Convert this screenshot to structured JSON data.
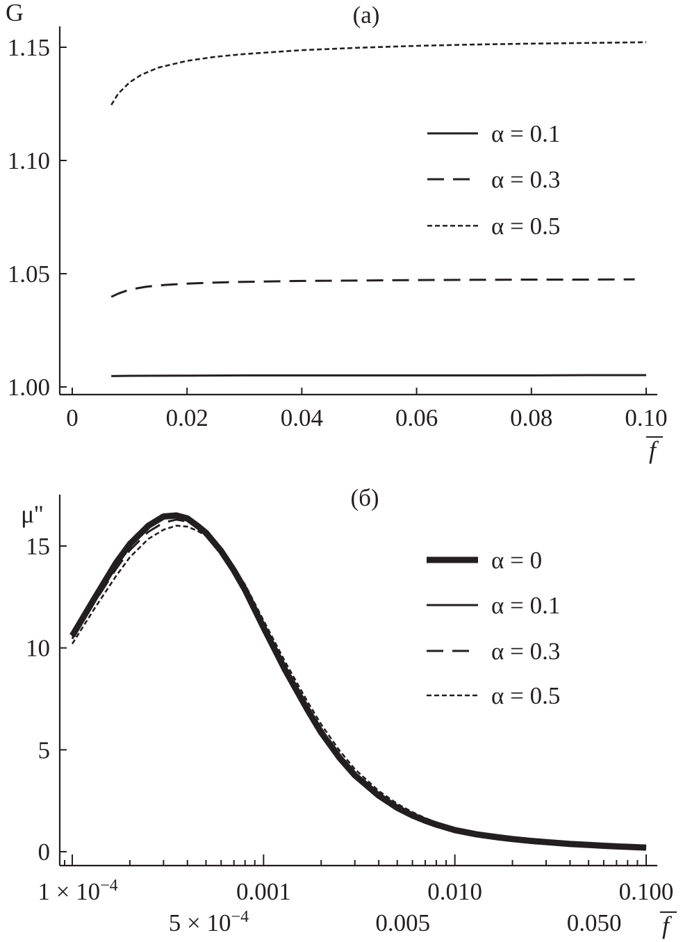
{
  "chart_data": [
    {
      "type": "line",
      "panel_label": "(a)",
      "xlabel": "f",
      "xlabel_overbar": true,
      "ylabel": "G",
      "xlim": [
        0,
        0.1
      ],
      "ylim": [
        1.0,
        1.16
      ],
      "x_ticks": [
        0,
        0.02,
        0.04,
        0.06,
        0.08,
        0.1
      ],
      "x_tick_labels": [
        "0",
        "0.02",
        "0.04",
        "0.06",
        "0.08",
        "0.10"
      ],
      "y_ticks": [
        1.0,
        1.05,
        1.1,
        1.15
      ],
      "y_tick_labels": [
        "1.00",
        "1.05",
        "1.10",
        "1.15"
      ],
      "grid": false,
      "legend_position": "top-right",
      "colors": {
        "ink": "#231f20"
      },
      "series": [
        {
          "name": "α = 0.1",
          "style": "solid",
          "x": [
            0.0068,
            0.01,
            0.02,
            0.03,
            0.04,
            0.05,
            0.06,
            0.07,
            0.08,
            0.09,
            0.1
          ],
          "y": [
            1.0048,
            1.0049,
            1.005,
            1.0051,
            1.0051,
            1.0051,
            1.0051,
            1.0051,
            1.0051,
            1.0052,
            1.0052
          ]
        },
        {
          "name": "α = 0.3",
          "style": "dashed",
          "x": [
            0.0068,
            0.008,
            0.01,
            0.013,
            0.016,
            0.02,
            0.025,
            0.03,
            0.04,
            0.05,
            0.06,
            0.07,
            0.08,
            0.09,
            0.098
          ],
          "y": [
            1.0398,
            1.0412,
            1.043,
            1.0443,
            1.045,
            1.0456,
            1.0461,
            1.0464,
            1.0468,
            1.047,
            1.0472,
            1.0473,
            1.0474,
            1.0474,
            1.0475
          ]
        },
        {
          "name": "α = 0.5",
          "style": "dotted",
          "x": [
            0.0068,
            0.008,
            0.01,
            0.012,
            0.015,
            0.02,
            0.025,
            0.03,
            0.04,
            0.05,
            0.06,
            0.07,
            0.08,
            0.09,
            0.1
          ],
          "y": [
            1.1245,
            1.1295,
            1.1345,
            1.1378,
            1.141,
            1.144,
            1.1458,
            1.147,
            1.1487,
            1.1498,
            1.1506,
            1.1512,
            1.1516,
            1.1519,
            1.1522
          ]
        }
      ]
    },
    {
      "type": "line",
      "panel_label": "(б)",
      "x_scale": "log",
      "xlabel": "f",
      "xlabel_overbar": true,
      "ylabel": "μ''",
      "xlim": [
        0.0001,
        0.1
      ],
      "ylim": [
        0,
        16.5
      ],
      "x_major_ticks": [
        0.0001,
        0.001,
        0.01,
        0.1
      ],
      "x_major_labels": [
        {
          "mant": "1 × 10",
          "exp": "−4"
        },
        {
          "mant": "0.001"
        },
        {
          "mant": "0.010"
        },
        {
          "mant": "0.100"
        }
      ],
      "x_secondary_ticks": [
        0.0005,
        0.005,
        0.05
      ],
      "x_secondary_labels": [
        {
          "mant": "5 × 10",
          "exp": "−4"
        },
        {
          "mant": "0.005"
        },
        {
          "mant": "0.050"
        }
      ],
      "y_ticks": [
        0,
        5,
        10,
        15
      ],
      "y_tick_labels": [
        "0",
        "5",
        "10",
        "15"
      ],
      "grid": false,
      "legend_position": "top-right",
      "colors": {
        "ink": "#231f20"
      },
      "series": [
        {
          "name": "α = 0",
          "style": "thick",
          "x": [
            0.0001,
            0.00013,
            0.00017,
            0.0002,
            0.00025,
            0.0003,
            0.00035,
            0.0004,
            0.00045,
            0.0005,
            0.0006,
            0.0007,
            0.0008,
            0.001,
            0.0013,
            0.0017,
            0.002,
            0.0025,
            0.003,
            0.004,
            0.005,
            0.006,
            0.007,
            0.008,
            0.01,
            0.013,
            0.017,
            0.02,
            0.025,
            0.03,
            0.04,
            0.05,
            0.06,
            0.07,
            0.08,
            0.1
          ],
          "y": [
            10.6,
            12.4,
            14.2,
            15.1,
            16.0,
            16.45,
            16.5,
            16.35,
            16.0,
            15.65,
            14.75,
            13.8,
            12.85,
            11.0,
            8.9,
            6.95,
            5.85,
            4.6,
            3.75,
            2.75,
            2.15,
            1.78,
            1.52,
            1.33,
            1.06,
            0.85,
            0.7,
            0.62,
            0.53,
            0.47,
            0.38,
            0.33,
            0.29,
            0.26,
            0.24,
            0.2
          ]
        },
        {
          "name": "α = 0.1",
          "style": "solid",
          "x": [
            0.0001,
            0.00013,
            0.00017,
            0.0002,
            0.00025,
            0.0003,
            0.00035,
            0.0004,
            0.00045,
            0.0005,
            0.0006,
            0.0007,
            0.0008,
            0.001,
            0.0013,
            0.0017,
            0.002,
            0.0025,
            0.003,
            0.004,
            0.005,
            0.006,
            0.007,
            0.008,
            0.01,
            0.013,
            0.017,
            0.02,
            0.025,
            0.03,
            0.04,
            0.05,
            0.06,
            0.07,
            0.08,
            0.1
          ],
          "y": [
            10.55,
            12.35,
            14.1,
            15.0,
            15.9,
            16.35,
            16.45,
            16.3,
            15.97,
            15.63,
            14.74,
            13.8,
            12.86,
            11.03,
            8.95,
            7.0,
            5.9,
            4.65,
            3.79,
            2.78,
            2.18,
            1.8,
            1.54,
            1.35,
            1.08,
            0.86,
            0.71,
            0.63,
            0.54,
            0.48,
            0.39,
            0.33,
            0.29,
            0.26,
            0.24,
            0.2
          ]
        },
        {
          "name": "α = 0.3",
          "style": "dashed",
          "x": [
            0.0001,
            0.00013,
            0.00017,
            0.0002,
            0.00025,
            0.0003,
            0.00035,
            0.0004,
            0.00045,
            0.0005,
            0.0006,
            0.0007,
            0.0008,
            0.001,
            0.0013,
            0.0017,
            0.002,
            0.0025,
            0.003,
            0.004,
            0.005,
            0.006,
            0.007,
            0.008,
            0.01,
            0.013,
            0.017,
            0.02,
            0.025,
            0.03,
            0.04,
            0.05,
            0.06,
            0.07,
            0.08,
            0.1
          ],
          "y": [
            10.45,
            12.2,
            13.9,
            14.8,
            15.7,
            16.15,
            16.3,
            16.2,
            15.9,
            15.6,
            14.75,
            13.85,
            12.95,
            11.15,
            9.1,
            7.15,
            6.05,
            4.78,
            3.9,
            2.87,
            2.25,
            1.86,
            1.59,
            1.39,
            1.11,
            0.88,
            0.72,
            0.64,
            0.55,
            0.48,
            0.39,
            0.33,
            0.29,
            0.26,
            0.24,
            0.2
          ]
        },
        {
          "name": "α = 0.5",
          "style": "dotted",
          "x": [
            0.0001,
            0.00013,
            0.00017,
            0.0002,
            0.00025,
            0.0003,
            0.00035,
            0.0004,
            0.00045,
            0.0005,
            0.0006,
            0.0007,
            0.0008,
            0.001,
            0.0013,
            0.0017,
            0.002,
            0.0025,
            0.003,
            0.004,
            0.005,
            0.006,
            0.007,
            0.008,
            0.01,
            0.013,
            0.017,
            0.02,
            0.025,
            0.03,
            0.04,
            0.05,
            0.06,
            0.07,
            0.08,
            0.1
          ],
          "y": [
            10.2,
            11.9,
            13.55,
            14.45,
            15.35,
            15.8,
            16.0,
            15.95,
            15.75,
            15.5,
            14.75,
            13.95,
            13.1,
            11.35,
            9.3,
            7.35,
            6.25,
            4.95,
            4.05,
            2.98,
            2.35,
            1.94,
            1.65,
            1.44,
            1.15,
            0.9,
            0.73,
            0.65,
            0.55,
            0.49,
            0.39,
            0.33,
            0.29,
            0.26,
            0.24,
            0.2
          ]
        }
      ]
    }
  ]
}
